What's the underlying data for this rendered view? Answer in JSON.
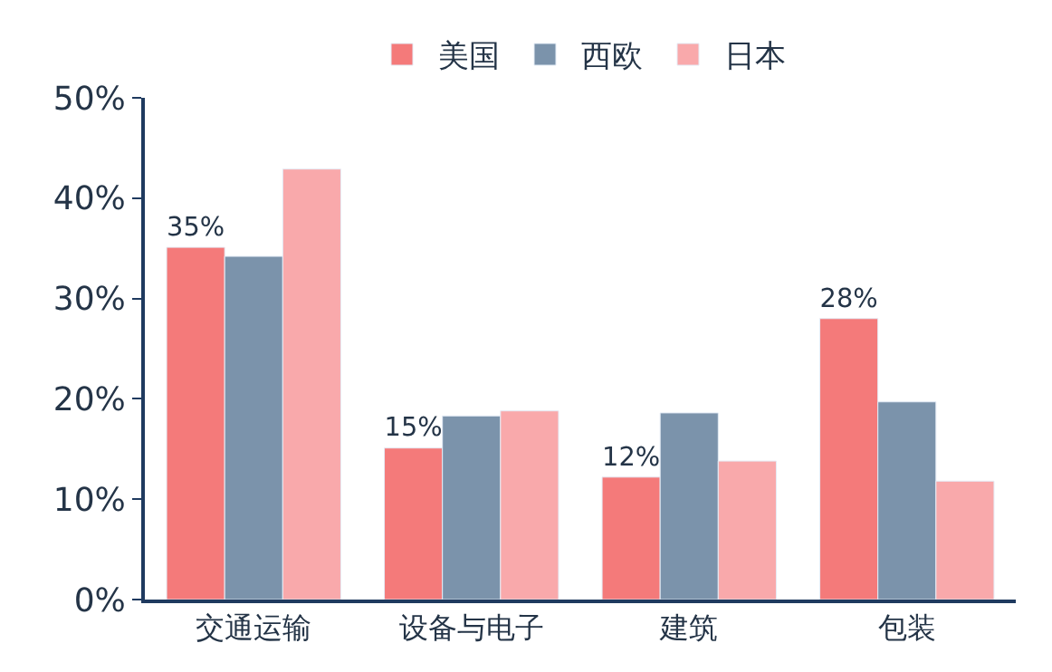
{
  "chart_data": {
    "type": "bar",
    "categories": [
      "交通运输",
      "设备与电子",
      "建筑",
      "包装"
    ],
    "series": [
      {
        "name": "美国",
        "color": "#f47a7a",
        "values": [
          35.1,
          15.1,
          12.2,
          28.0
        ],
        "value_labels": [
          "35%",
          "15%",
          "12%",
          "28%"
        ]
      },
      {
        "name": "西欧",
        "color": "#7b93ab",
        "values": [
          34.2,
          18.3,
          18.6,
          19.7
        ]
      },
      {
        "name": "日本",
        "color": "#f9a9ab",
        "values": [
          42.9,
          18.8,
          13.8,
          11.8
        ]
      }
    ],
    "ylim": [
      0,
      50
    ],
    "yticks": [
      {
        "value": 0,
        "label": "0%"
      },
      {
        "value": 10,
        "label": "10%"
      },
      {
        "value": 20,
        "label": "20%"
      },
      {
        "value": 30,
        "label": "30%"
      },
      {
        "value": 40,
        "label": "40%"
      },
      {
        "value": 50,
        "label": "50%"
      }
    ],
    "legend": "top"
  }
}
